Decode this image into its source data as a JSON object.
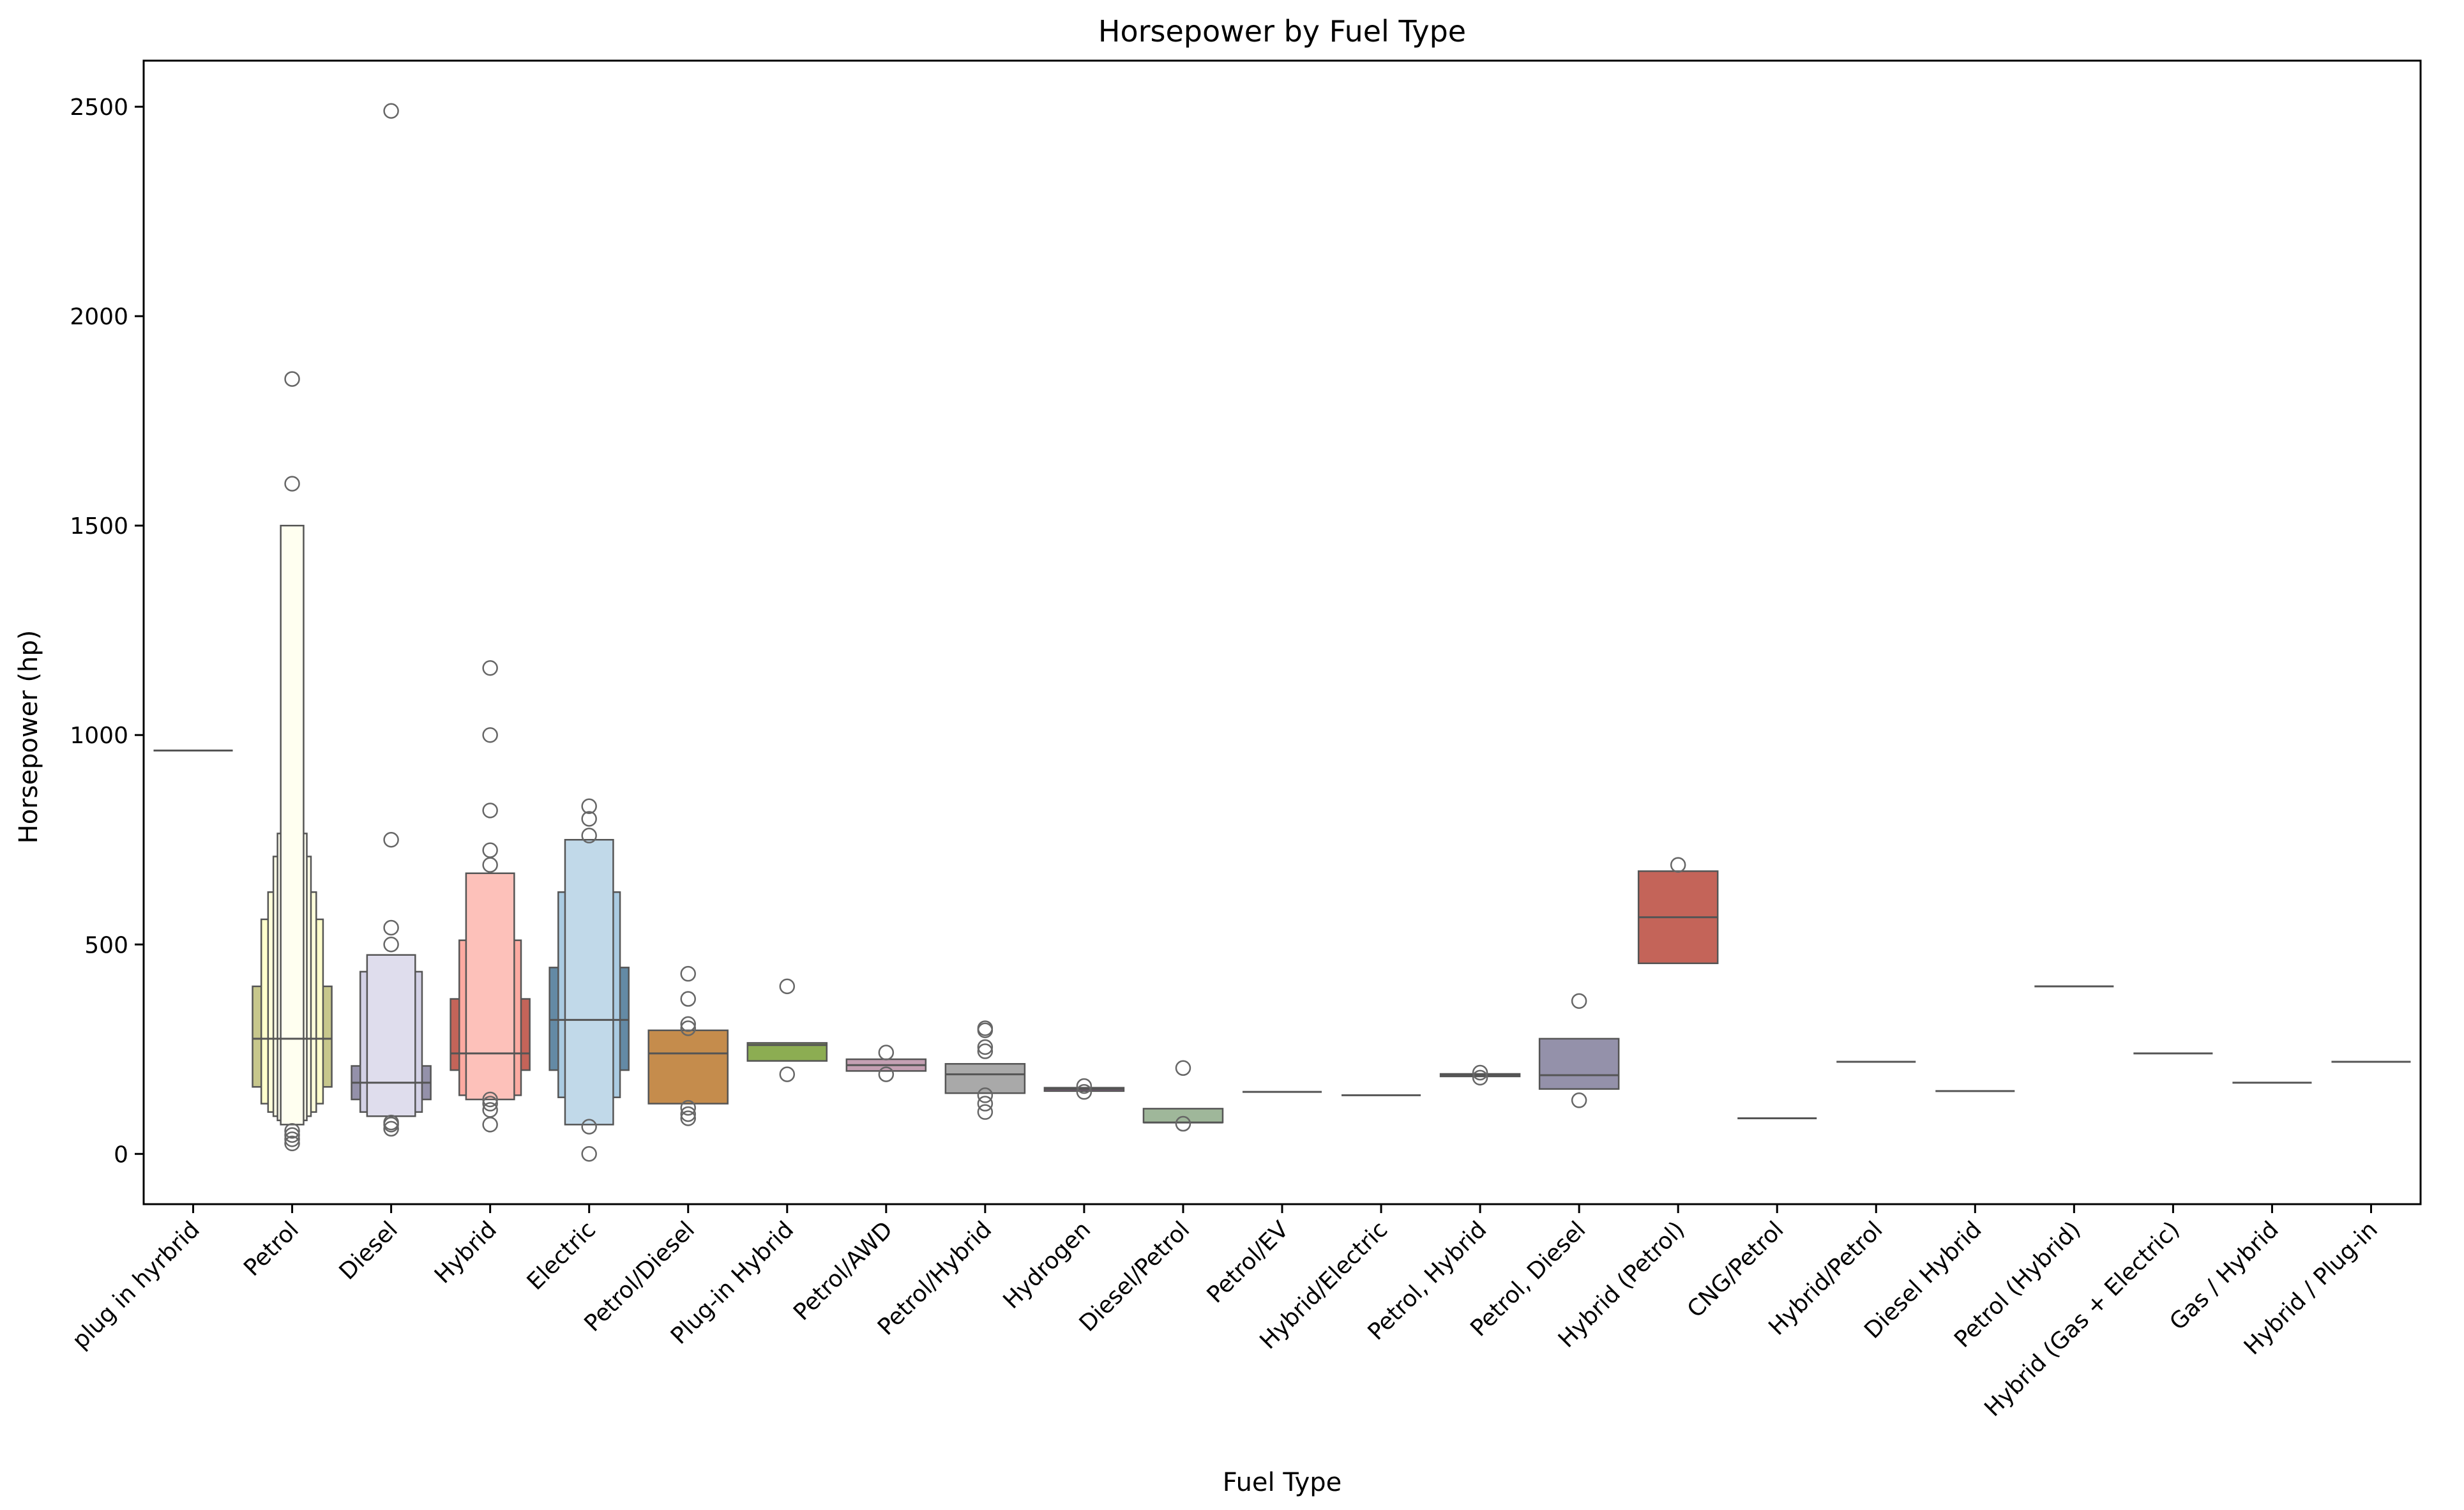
{
  "chart_data": {
    "type": "boxen",
    "title": "Horsepower by Fuel Type",
    "xlabel": "Fuel Type",
    "ylabel": "Horsepower (hp)",
    "ylim": [
      -120,
      2610
    ],
    "yticks": [
      0,
      500,
      1000,
      1500,
      2000,
      2500
    ],
    "grid": false,
    "legend": "none",
    "categories": [
      "plug in hyrbrid",
      "Petrol",
      "Diesel",
      "Hybrid",
      "Electric",
      "Petrol/Diesel",
      "Plug-in Hybrid",
      "Petrol/AWD",
      "Petrol/Hybrid",
      "Hydrogen",
      "Diesel/Petrol",
      "Petrol/EV",
      "Hybrid/Electric",
      "Petrol, Hybrid",
      "Petrol, Diesel",
      "Hybrid (Petrol)",
      "CNG/Petrol",
      "Hybrid/Petrol",
      "Diesel Hybrid",
      "Petrol (Hybrid)",
      "Hybrid (Gas + Electric)",
      "Gas / Hybrid",
      "Hybrid / Plug-in"
    ],
    "series": [
      {
        "name": "plug in hyrbrid",
        "color": "#8dd3c7",
        "median": 963,
        "levels": [],
        "outliers": []
      },
      {
        "name": "Petrol",
        "color": "#ffffb3",
        "median": 275,
        "levels": [
          [
            160,
            400
          ],
          [
            120,
            560
          ],
          [
            100,
            625
          ],
          [
            90,
            710
          ],
          [
            80,
            765
          ],
          [
            70,
            1500
          ]
        ],
        "outliers": [
          25,
          35,
          45,
          55,
          1600,
          1850
        ]
      },
      {
        "name": "Diesel",
        "color": "#bebada",
        "median": 170,
        "levels": [
          [
            130,
            210
          ],
          [
            100,
            435
          ],
          [
            90,
            475
          ]
        ],
        "outliers": [
          60,
          70,
          75,
          500,
          540,
          750,
          2490
        ]
      },
      {
        "name": "Hybrid",
        "color": "#fb8072",
        "median": 240,
        "levels": [
          [
            200,
            370
          ],
          [
            140,
            510
          ],
          [
            130,
            670
          ]
        ],
        "outliers": [
          70,
          105,
          120,
          130,
          690,
          725,
          820,
          1000,
          1160
        ]
      },
      {
        "name": "Electric",
        "color": "#80b1d3",
        "median": 320,
        "levels": [
          [
            200,
            445
          ],
          [
            135,
            625
          ],
          [
            70,
            750
          ]
        ],
        "outliers": [
          0,
          65,
          760,
          800,
          830
        ]
      },
      {
        "name": "Petrol/Diesel",
        "color": "#fdb462",
        "median": 240,
        "levels": [
          [
            120,
            295
          ]
        ],
        "outliers": [
          85,
          95,
          110,
          300,
          310,
          370,
          430
        ]
      },
      {
        "name": "Plug-in Hybrid",
        "color": "#b3de69",
        "median": 260,
        "levels": [
          [
            222,
            265
          ]
        ],
        "outliers": [
          190,
          400
        ]
      },
      {
        "name": "Petrol/AWD",
        "color": "#fccde5",
        "median": 212,
        "levels": [
          [
            198,
            226
          ]
        ],
        "outliers": [
          190,
          242
        ]
      },
      {
        "name": "Petrol/Hybrid",
        "color": "#d9d9d9",
        "median": 190,
        "levels": [
          [
            145,
            215
          ]
        ],
        "outliers": [
          100,
          120,
          140,
          245,
          255,
          295,
          300
        ]
      },
      {
        "name": "Hydrogen",
        "color": "#bc80bd",
        "median": 155,
        "levels": [
          [
            150,
            158
          ]
        ],
        "outliers": [
          148,
          162
        ]
      },
      {
        "name": "Diesel/Petrol",
        "color": "#ccebc5",
        "median": 75,
        "levels": [
          [
            75,
            108
          ]
        ],
        "outliers": [
          72,
          205
        ]
      },
      {
        "name": "Petrol/EV",
        "color": "#ffed6f",
        "median": 148,
        "levels": [],
        "outliers": []
      },
      {
        "name": "Hybrid/Electric",
        "color": "#8dd3c7",
        "median": 140,
        "levels": [],
        "outliers": []
      },
      {
        "name": "Petrol, Hybrid",
        "color": "#ffffb3",
        "median": 188,
        "levels": [
          [
            185,
            191
          ]
        ],
        "outliers": [
          182,
          194
        ]
      },
      {
        "name": "Petrol, Diesel",
        "color": "#bebada",
        "median": 188,
        "levels": [
          [
            155,
            275
          ]
        ],
        "outliers": [
          128,
          365
        ]
      },
      {
        "name": "Hybrid (Petrol)",
        "color": "#fb8072",
        "median": 565,
        "levels": [
          [
            455,
            675
          ]
        ],
        "outliers": [
          690
        ]
      },
      {
        "name": "CNG/Petrol",
        "color": "#80b1d3",
        "median": 85,
        "levels": [],
        "outliers": []
      },
      {
        "name": "Hybrid/Petrol",
        "color": "#fdb462",
        "median": 220,
        "levels": [],
        "outliers": []
      },
      {
        "name": "Diesel Hybrid",
        "color": "#b3de69",
        "median": 150,
        "levels": [],
        "outliers": []
      },
      {
        "name": "Petrol (Hybrid)",
        "color": "#fccde5",
        "median": 400,
        "levels": [],
        "outliers": []
      },
      {
        "name": "Hybrid (Gas + Electric)",
        "color": "#d9d9d9",
        "median": 240,
        "levels": [],
        "outliers": []
      },
      {
        "name": "Gas / Hybrid",
        "color": "#bc80bd",
        "median": 170,
        "levels": [],
        "outliers": []
      },
      {
        "name": "Hybrid / Plug-in",
        "color": "#ccebc5",
        "median": 220,
        "levels": [],
        "outliers": []
      }
    ]
  }
}
